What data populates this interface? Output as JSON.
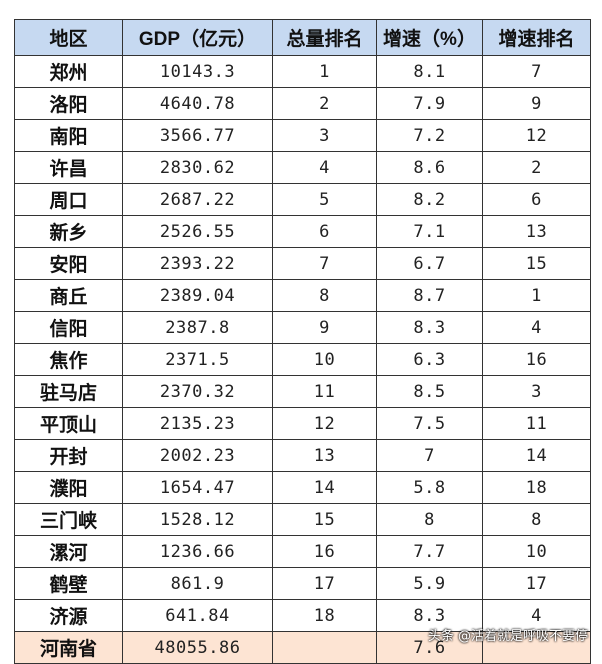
{
  "headers": [
    "地区",
    "GDP（亿元）",
    "总量排名",
    "增速（%）",
    "增速排名"
  ],
  "rows": [
    [
      "郑州",
      "10143.3",
      "1",
      "8.1",
      "7"
    ],
    [
      "洛阳",
      "4640.78",
      "2",
      "7.9",
      "9"
    ],
    [
      "南阳",
      "3566.77",
      "3",
      "7.2",
      "12"
    ],
    [
      "许昌",
      "2830.62",
      "4",
      "8.6",
      "2"
    ],
    [
      "周口",
      "2687.22",
      "5",
      "8.2",
      "6"
    ],
    [
      "新乡",
      "2526.55",
      "6",
      "7.1",
      "13"
    ],
    [
      "安阳",
      "2393.22",
      "7",
      "6.7",
      "15"
    ],
    [
      "商丘",
      "2389.04",
      "8",
      "8.7",
      "1"
    ],
    [
      "信阳",
      "2387.8",
      "9",
      "8.3",
      "4"
    ],
    [
      "焦作",
      "2371.5",
      "10",
      "6.3",
      "16"
    ],
    [
      "驻马店",
      "2370.32",
      "11",
      "8.5",
      "3"
    ],
    [
      "平顶山",
      "2135.23",
      "12",
      "7.5",
      "11"
    ],
    [
      "开封",
      "2002.23",
      "13",
      "7",
      "14"
    ],
    [
      "濮阳",
      "1654.47",
      "14",
      "5.8",
      "18"
    ],
    [
      "三门峡",
      "1528.12",
      "15",
      "8",
      "8"
    ],
    [
      "漯河",
      "1236.66",
      "16",
      "7.7",
      "10"
    ],
    [
      "鹤壁",
      "861.9",
      "17",
      "5.9",
      "17"
    ],
    [
      "济源",
      "641.84",
      "18",
      "8.3",
      "4"
    ]
  ],
  "total": [
    "河南省",
    "48055.86",
    "",
    "7.6",
    ""
  ],
  "watermark": "头条 @活着就是呼吸不要停",
  "colors": {
    "header_bg": "#c6d9f1",
    "total_bg": "#fde4d3"
  }
}
